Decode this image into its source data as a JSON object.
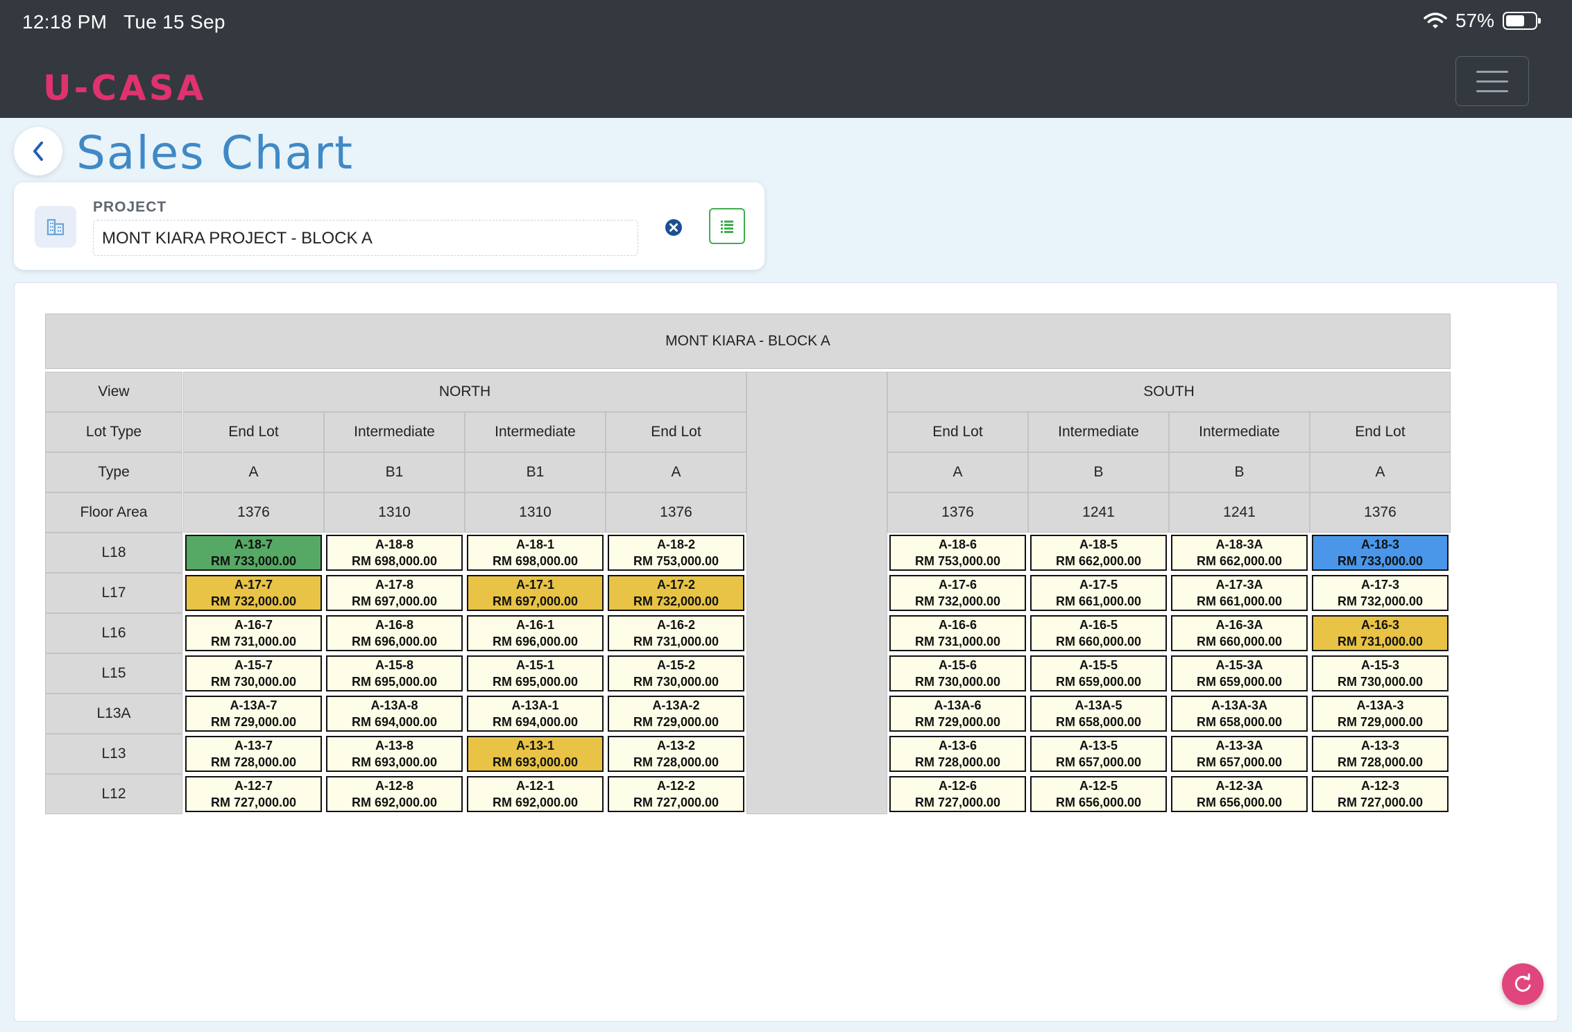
{
  "status_bar": {
    "time": "12:18 PM",
    "date": "Tue 15 Sep",
    "battery": "57%"
  },
  "app": {
    "brand": "U-CASA",
    "page_title": "Sales Chart"
  },
  "project": {
    "label": "PROJECT",
    "value": "MONT KIARA PROJECT - BLOCK A"
  },
  "chart": {
    "title": "MONT KIARA - BLOCK A",
    "row_headers": {
      "view": "View",
      "lot_type": "Lot Type",
      "type": "Type",
      "floor_area": "Floor Area"
    },
    "views": [
      {
        "name": "NORTH",
        "columns": [
          {
            "lot_type": "End Lot",
            "type": "A",
            "floor_area": "1376"
          },
          {
            "lot_type": "Intermediate",
            "type": "B1",
            "floor_area": "1310"
          },
          {
            "lot_type": "Intermediate",
            "type": "B1",
            "floor_area": "1310"
          },
          {
            "lot_type": "End Lot",
            "type": "A",
            "floor_area": "1376"
          }
        ]
      },
      {
        "name": "SOUTH",
        "columns": [
          {
            "lot_type": "End Lot",
            "type": "A",
            "floor_area": "1376"
          },
          {
            "lot_type": "Intermediate",
            "type": "B",
            "floor_area": "1241"
          },
          {
            "lot_type": "Intermediate",
            "type": "B",
            "floor_area": "1241"
          },
          {
            "lot_type": "End Lot",
            "type": "A",
            "floor_area": "1376"
          }
        ]
      }
    ],
    "status_colors": {
      "available": "#fefde8",
      "green": "#56a964",
      "yellow": "#e8c345",
      "blue": "#4a97ea"
    },
    "floors": [
      {
        "level": "L18",
        "units": [
          {
            "id": "A-18-7",
            "price": "RM 733,000.00",
            "status": "green"
          },
          {
            "id": "A-18-8",
            "price": "RM 698,000.00",
            "status": "available"
          },
          {
            "id": "A-18-1",
            "price": "RM 698,000.00",
            "status": "available"
          },
          {
            "id": "A-18-2",
            "price": "RM 753,000.00",
            "status": "available"
          },
          {
            "id": "A-18-6",
            "price": "RM 753,000.00",
            "status": "available"
          },
          {
            "id": "A-18-5",
            "price": "RM 662,000.00",
            "status": "available"
          },
          {
            "id": "A-18-3A",
            "price": "RM 662,000.00",
            "status": "available"
          },
          {
            "id": "A-18-3",
            "price": "RM 733,000.00",
            "status": "blue"
          }
        ]
      },
      {
        "level": "L17",
        "units": [
          {
            "id": "A-17-7",
            "price": "RM 732,000.00",
            "status": "yellow"
          },
          {
            "id": "A-17-8",
            "price": "RM 697,000.00",
            "status": "available"
          },
          {
            "id": "A-17-1",
            "price": "RM 697,000.00",
            "status": "yellow"
          },
          {
            "id": "A-17-2",
            "price": "RM 732,000.00",
            "status": "yellow"
          },
          {
            "id": "A-17-6",
            "price": "RM 732,000.00",
            "status": "available"
          },
          {
            "id": "A-17-5",
            "price": "RM 661,000.00",
            "status": "available"
          },
          {
            "id": "A-17-3A",
            "price": "RM 661,000.00",
            "status": "available"
          },
          {
            "id": "A-17-3",
            "price": "RM 732,000.00",
            "status": "available"
          }
        ]
      },
      {
        "level": "L16",
        "units": [
          {
            "id": "A-16-7",
            "price": "RM 731,000.00",
            "status": "available"
          },
          {
            "id": "A-16-8",
            "price": "RM 696,000.00",
            "status": "available"
          },
          {
            "id": "A-16-1",
            "price": "RM 696,000.00",
            "status": "available"
          },
          {
            "id": "A-16-2",
            "price": "RM 731,000.00",
            "status": "available"
          },
          {
            "id": "A-16-6",
            "price": "RM 731,000.00",
            "status": "available"
          },
          {
            "id": "A-16-5",
            "price": "RM 660,000.00",
            "status": "available"
          },
          {
            "id": "A-16-3A",
            "price": "RM 660,000.00",
            "status": "available"
          },
          {
            "id": "A-16-3",
            "price": "RM 731,000.00",
            "status": "yellow"
          }
        ]
      },
      {
        "level": "L15",
        "units": [
          {
            "id": "A-15-7",
            "price": "RM 730,000.00",
            "status": "available"
          },
          {
            "id": "A-15-8",
            "price": "RM 695,000.00",
            "status": "available"
          },
          {
            "id": "A-15-1",
            "price": "RM 695,000.00",
            "status": "available"
          },
          {
            "id": "A-15-2",
            "price": "RM 730,000.00",
            "status": "available"
          },
          {
            "id": "A-15-6",
            "price": "RM 730,000.00",
            "status": "available"
          },
          {
            "id": "A-15-5",
            "price": "RM 659,000.00",
            "status": "available"
          },
          {
            "id": "A-15-3A",
            "price": "RM 659,000.00",
            "status": "available"
          },
          {
            "id": "A-15-3",
            "price": "RM 730,000.00",
            "status": "available"
          }
        ]
      },
      {
        "level": "L13A",
        "units": [
          {
            "id": "A-13A-7",
            "price": "RM 729,000.00",
            "status": "available"
          },
          {
            "id": "A-13A-8",
            "price": "RM 694,000.00",
            "status": "available"
          },
          {
            "id": "A-13A-1",
            "price": "RM 694,000.00",
            "status": "available"
          },
          {
            "id": "A-13A-2",
            "price": "RM 729,000.00",
            "status": "available"
          },
          {
            "id": "A-13A-6",
            "price": "RM 729,000.00",
            "status": "available"
          },
          {
            "id": "A-13A-5",
            "price": "RM 658,000.00",
            "status": "available"
          },
          {
            "id": "A-13A-3A",
            "price": "RM 658,000.00",
            "status": "available"
          },
          {
            "id": "A-13A-3",
            "price": "RM 729,000.00",
            "status": "available"
          }
        ]
      },
      {
        "level": "L13",
        "units": [
          {
            "id": "A-13-7",
            "price": "RM 728,000.00",
            "status": "available"
          },
          {
            "id": "A-13-8",
            "price": "RM 693,000.00",
            "status": "available"
          },
          {
            "id": "A-13-1",
            "price": "RM 693,000.00",
            "status": "yellow"
          },
          {
            "id": "A-13-2",
            "price": "RM 728,000.00",
            "status": "available"
          },
          {
            "id": "A-13-6",
            "price": "RM 728,000.00",
            "status": "available"
          },
          {
            "id": "A-13-5",
            "price": "RM 657,000.00",
            "status": "available"
          },
          {
            "id": "A-13-3A",
            "price": "RM 657,000.00",
            "status": "available"
          },
          {
            "id": "A-13-3",
            "price": "RM 728,000.00",
            "status": "available"
          }
        ]
      },
      {
        "level": "L12",
        "units": [
          {
            "id": "A-12-7",
            "price": "RM 727,000.00",
            "status": "available"
          },
          {
            "id": "A-12-8",
            "price": "RM 692,000.00",
            "status": "available"
          },
          {
            "id": "A-12-1",
            "price": "RM 692,000.00",
            "status": "available"
          },
          {
            "id": "A-12-2",
            "price": "RM 727,000.00",
            "status": "available"
          },
          {
            "id": "A-12-6",
            "price": "RM 727,000.00",
            "status": "available"
          },
          {
            "id": "A-12-5",
            "price": "RM 656,000.00",
            "status": "available"
          },
          {
            "id": "A-12-3A",
            "price": "RM 656,000.00",
            "status": "available"
          },
          {
            "id": "A-12-3",
            "price": "RM 727,000.00",
            "status": "available"
          }
        ]
      }
    ]
  }
}
